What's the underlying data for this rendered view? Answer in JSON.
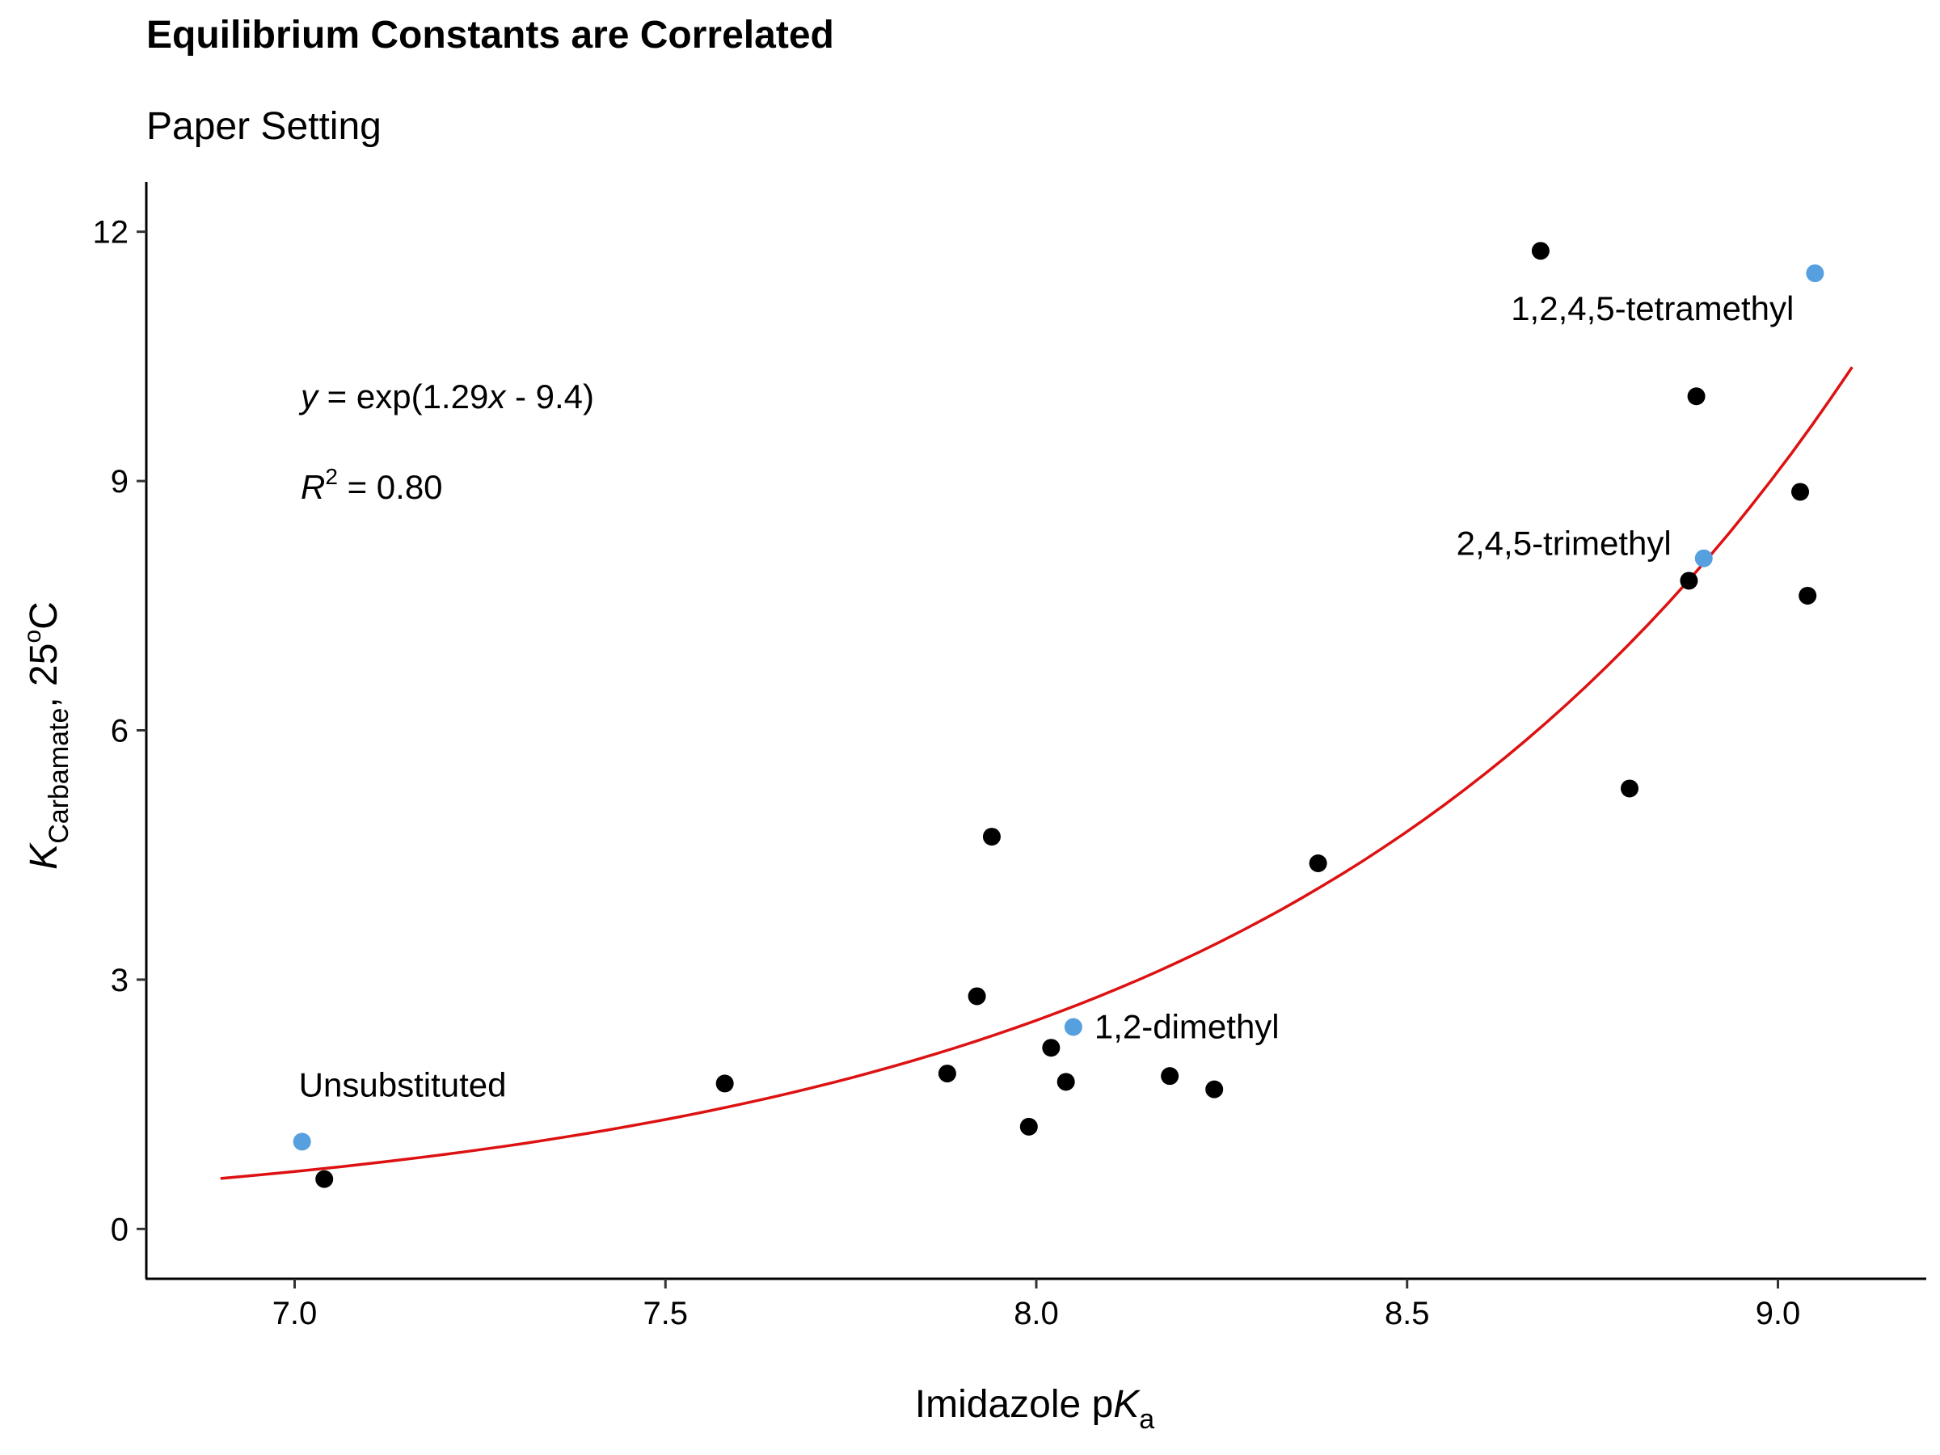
{
  "chart_data": {
    "type": "scatter",
    "title": "Equilibrium Constants are Correlated",
    "subtitle": "Paper Setting",
    "xlabel": {
      "main": "Imidazole p",
      "italic": "K",
      "sub": "a"
    },
    "ylabel": {
      "italic": "K",
      "sub": "Carbamate",
      "rest": ", 25",
      "sup": "o",
      "end": "C"
    },
    "xlim": [
      6.8,
      9.2
    ],
    "ylim": [
      -0.6,
      12.6
    ],
    "xticks": [
      7.0,
      7.5,
      8.0,
      8.5,
      9.0
    ],
    "xtick_labels": [
      "7.0",
      "7.5",
      "8.0",
      "8.5",
      "9.0"
    ],
    "yticks": [
      0,
      3,
      6,
      9,
      12
    ],
    "ytick_labels": [
      "0",
      "3",
      "6",
      "9",
      "12"
    ],
    "grid": false,
    "series": [
      {
        "color": "#000000",
        "points": [
          [
            7.04,
            0.6
          ],
          [
            7.58,
            1.75
          ],
          [
            7.88,
            1.87
          ],
          [
            7.92,
            2.8
          ],
          [
            7.94,
            4.72
          ],
          [
            7.99,
            1.23
          ],
          [
            8.02,
            2.18
          ],
          [
            8.04,
            1.77
          ],
          [
            8.18,
            1.84
          ],
          [
            8.24,
            1.68
          ],
          [
            8.38,
            4.4
          ],
          [
            8.68,
            11.77
          ],
          [
            8.8,
            5.3
          ],
          [
            8.88,
            7.8
          ],
          [
            8.89,
            10.02
          ],
          [
            9.03,
            8.87
          ],
          [
            9.04,
            7.62
          ]
        ]
      },
      {
        "color": "#56a0e0",
        "points": [
          [
            7.01,
            1.05
          ],
          [
            8.05,
            2.43
          ],
          [
            8.9,
            8.07
          ],
          [
            9.05,
            11.5
          ]
        ]
      }
    ],
    "point_labels": [
      {
        "text": "Unsubstituted",
        "x": 7.01,
        "y": 1.05,
        "pos": "above"
      },
      {
        "text": "1,2-dimethyl",
        "x": 8.05,
        "y": 2.43,
        "pos": "right"
      },
      {
        "text": "2,4,5-trimethyl",
        "x": 8.9,
        "y": 8.07,
        "pos": "left"
      },
      {
        "text": "1,2,4,5-tetramethyl",
        "x": 9.05,
        "y": 11.5,
        "pos": "below-left"
      }
    ],
    "fit": {
      "color": "#dd1111",
      "a": 1.29,
      "b": -9.4,
      "x_range": [
        6.9,
        9.1
      ]
    },
    "annotations": {
      "equation": {
        "italic_y": "y",
        "pre": " = exp(1.29",
        "italic_x": "x",
        "post": " - 9.4)"
      },
      "r2": {
        "italic_r": "R",
        "sup": "2",
        "post": " = 0.80"
      }
    }
  }
}
